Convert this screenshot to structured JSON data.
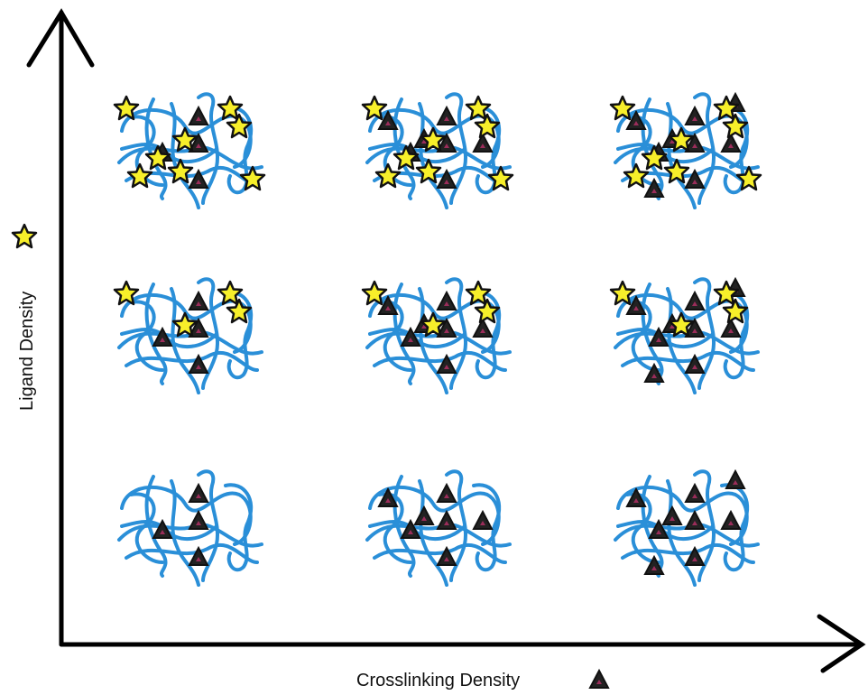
{
  "axes": {
    "x_label": "Crosslinking Density",
    "y_label": "Ligand Density"
  }
}
